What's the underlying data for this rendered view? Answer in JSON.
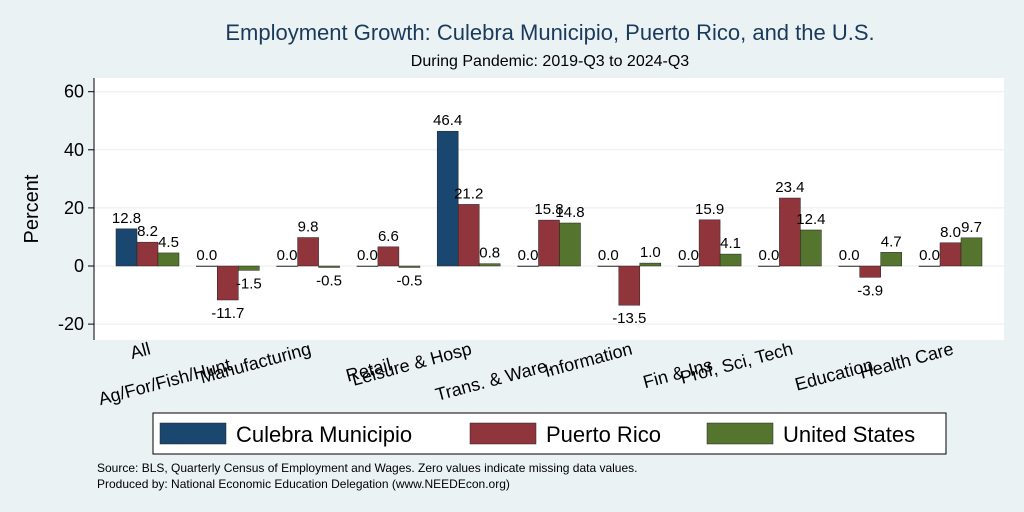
{
  "chart_data": {
    "type": "bar",
    "title": "Employment Growth: Culebra Municipio, Puerto Rico, and the U.S.",
    "subtitle": "During Pandemic: 2019-Q3 to 2024-Q3",
    "ylabel": "Percent",
    "xlabel": "",
    "ylim": [
      -26,
      66
    ],
    "yticks": [
      -20,
      0,
      20,
      40,
      60
    ],
    "grid": true,
    "legend_position": "bottom",
    "categories": [
      "All",
      "Ag/For/Fish/Hunt",
      "Manufacturing",
      "Retail",
      "Leisure & Hosp",
      "Trans. & Ware.",
      "Information",
      "Fin & Ins",
      "Prof, Sci, Tech",
      "Education",
      "Health Care"
    ],
    "series": [
      {
        "name": "Culebra Municipio",
        "color": "#1a476f",
        "values": [
          12.8,
          0.0,
          0.0,
          0.0,
          46.4,
          0.0,
          0.0,
          0.0,
          0.0,
          0.0,
          0.0
        ]
      },
      {
        "name": "Puerto Rico",
        "color": "#90353b",
        "values": [
          8.2,
          -11.7,
          9.8,
          6.6,
          21.2,
          15.8,
          -13.5,
          15.9,
          23.4,
          -3.9,
          8.0
        ]
      },
      {
        "name": "United States",
        "color": "#55752f",
        "values": [
          4.5,
          -1.5,
          -0.5,
          -0.5,
          0.8,
          14.8,
          1.0,
          4.1,
          12.4,
          4.7,
          9.7
        ]
      }
    ],
    "notes": [
      "Source: BLS, Quarterly Census of Employment and Wages. Zero values indicate missing data values.",
      "Produced by: National Economic Education Delegation (www.NEEDEcon.org)"
    ]
  }
}
